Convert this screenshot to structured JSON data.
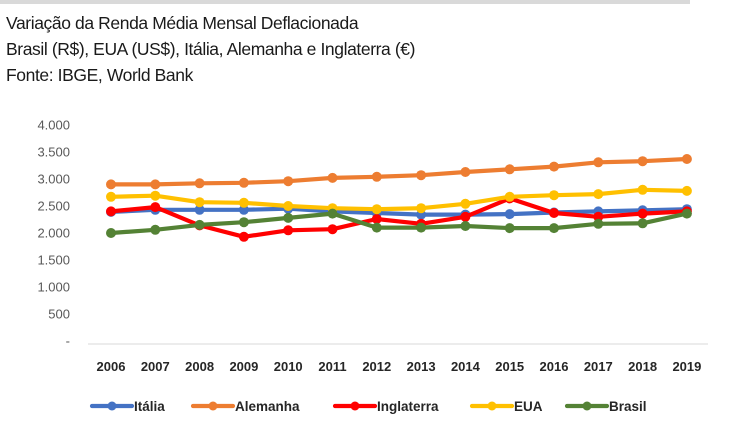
{
  "header": {
    "title": "Variação da Renda Média Mensal Deflacionada",
    "subtitle": "Brasil (R$), EUA (US$), Itália, Alemanha e Inglaterra (€)",
    "source": "Fonte: IBGE, World Bank"
  },
  "chart_data": {
    "type": "line",
    "title": "Variação da Renda Média Mensal Deflacionada",
    "subtitle": "Brasil (R$), EUA (US$), Itália, Alemanha e Inglaterra (€)",
    "source": "Fonte: IBGE, World Bank",
    "xlabel": "",
    "ylabel": "",
    "x": [
      "2006",
      "2007",
      "2008",
      "2009",
      "2010",
      "2011",
      "2012",
      "2013",
      "2014",
      "2015",
      "2016",
      "2017",
      "2018",
      "2019"
    ],
    "ylim": [
      0,
      4000
    ],
    "yticks": [
      0,
      500,
      1000,
      1500,
      2000,
      2500,
      3000,
      3500,
      4000
    ],
    "ytick_labels": [
      "-",
      "500",
      "1.000",
      "1.500",
      "2.000",
      "2.500",
      "3.000",
      "3.500",
      "4.000"
    ],
    "grid": false,
    "legend_position": "bottom",
    "series": [
      {
        "name": "Itália",
        "color": "#4472c4",
        "values": [
          2390,
          2430,
          2430,
          2430,
          2450,
          2400,
          2370,
          2340,
          2340,
          2350,
          2380,
          2400,
          2420,
          2440
        ]
      },
      {
        "name": "Alemanha",
        "color": "#ed7d31",
        "values": [
          2900,
          2900,
          2920,
          2930,
          2960,
          3020,
          3040,
          3070,
          3130,
          3180,
          3230,
          3310,
          3330,
          3370
        ]
      },
      {
        "name": "Inglaterra",
        "color": "#ff0000",
        "values": [
          2400,
          2480,
          2140,
          1930,
          2050,
          2070,
          2260,
          2170,
          2300,
          2640,
          2370,
          2300,
          2360,
          2400
        ]
      },
      {
        "name": "EUA",
        "color": "#ffc000",
        "values": [
          2670,
          2690,
          2570,
          2560,
          2500,
          2460,
          2440,
          2460,
          2540,
          2670,
          2700,
          2720,
          2800,
          2780
        ]
      },
      {
        "name": "Brasil",
        "color": "#548235",
        "values": [
          2000,
          2060,
          2150,
          2200,
          2280,
          2360,
          2100,
          2100,
          2130,
          2090,
          2090,
          2170,
          2180,
          2360
        ]
      }
    ]
  }
}
